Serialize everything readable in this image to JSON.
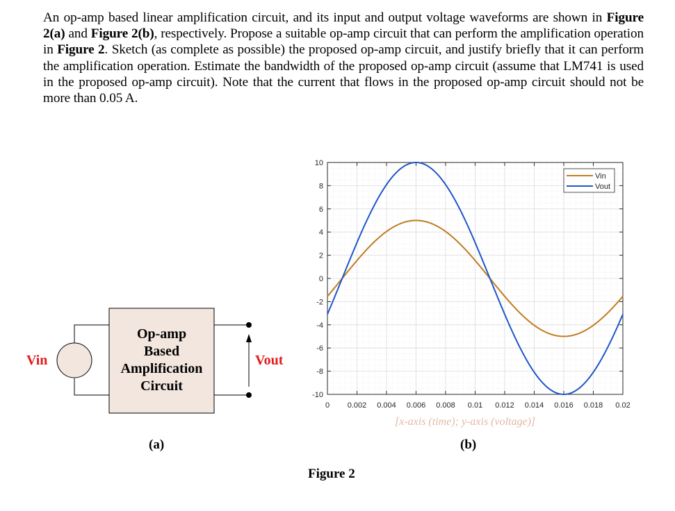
{
  "question": {
    "parts": [
      {
        "text": "An op-amp based linear amplification circuit, and its input and output voltage waveforms are shown in ",
        "bold": false
      },
      {
        "text": "Figure 2(a)",
        "bold": true
      },
      {
        "text": " and ",
        "bold": false
      },
      {
        "text": "Figure 2(b)",
        "bold": true
      },
      {
        "text": ", respectively. Propose a suitable op-amp circuit that can perform the amplification operation in ",
        "bold": false
      },
      {
        "text": "Figure 2",
        "bold": true
      },
      {
        "text": ". Sketch (as complete as possible) the proposed op-amp circuit, and justify briefly that it can perform the amplification operation. Estimate the bandwidth of the proposed op-amp circuit (assume that LM741 is used in the proposed op-amp circuit). Note that the current that flows in the proposed op-amp circuit should not be more than 0.05 A.",
        "bold": false
      }
    ]
  },
  "figure_a": {
    "block_lines": [
      "Op-amp",
      "Based",
      "Amplification",
      "Circuit"
    ],
    "input_label": "Vin",
    "output_label": "Vout",
    "caption": "(a)",
    "colors": {
      "block_fill": "#f2e6df",
      "label": "#e31b1b",
      "source_fill": "#f2e6df"
    }
  },
  "figure_b": {
    "axis_note": "[x-axis (time); y-axis (voltage)]",
    "caption": "(b)"
  },
  "figure_title": "Figure 2",
  "chart_data": {
    "type": "line",
    "title": "",
    "xlabel": "",
    "ylabel": "",
    "xlim": [
      0,
      0.02
    ],
    "ylim": [
      -10,
      10
    ],
    "grid": true,
    "minor_grid": true,
    "legend_position": "upper right",
    "x_ticks": [
      "0",
      "0.002",
      "0.004",
      "0.006",
      "0.008",
      "0.01",
      "0.012",
      "0.014",
      "0.016",
      "0.018",
      "0.02"
    ],
    "y_ticks": [
      "10",
      "8",
      "6",
      "4",
      "2",
      "0",
      "-2",
      "-4",
      "-6",
      "-8",
      "-10"
    ],
    "x": [
      0,
      0.001,
      0.002,
      0.003,
      0.004,
      0.005,
      0.006,
      0.007,
      0.008,
      0.009,
      0.01,
      0.011,
      0.012,
      0.013,
      0.014,
      0.015,
      0.016,
      0.017,
      0.018,
      0.019,
      0.02
    ],
    "series": [
      {
        "name": "Vin",
        "color": "#c07c1e",
        "amplitude": 5,
        "frequency_hz": 50,
        "peak_time": 0.006,
        "values": [
          -1.55,
          0.0,
          1.55,
          2.94,
          4.05,
          4.76,
          5.0,
          4.76,
          4.05,
          2.94,
          1.55,
          0.0,
          -1.55,
          -2.94,
          -4.05,
          -4.76,
          -5.0,
          -4.76,
          -4.05,
          -2.94,
          -1.55
        ]
      },
      {
        "name": "Vout",
        "color": "#1f55c8",
        "amplitude": 10,
        "frequency_hz": 50,
        "peak_time": 0.006,
        "values": [
          -3.09,
          0.0,
          3.09,
          5.88,
          8.09,
          9.51,
          10.0,
          9.51,
          8.09,
          5.88,
          3.09,
          0.0,
          -3.09,
          -5.88,
          -8.09,
          -9.51,
          -10.0,
          -9.51,
          -8.09,
          -5.88,
          -3.09
        ]
      }
    ],
    "legend": [
      "Vin",
      "Vout"
    ]
  }
}
